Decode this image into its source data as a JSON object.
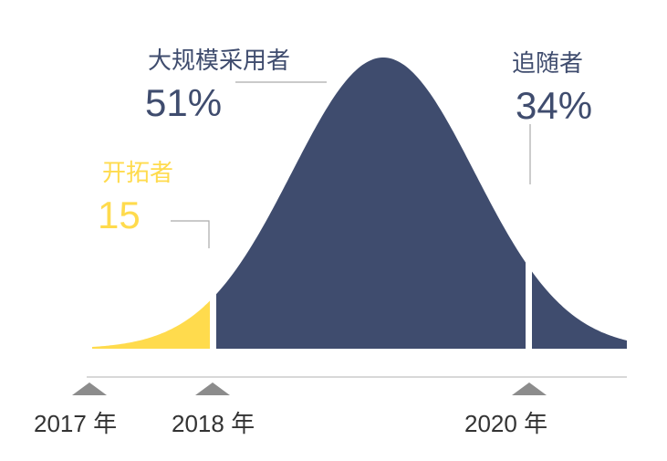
{
  "chart_data": {
    "type": "area",
    "title": "",
    "xlabel": "",
    "ylabel": "",
    "grid": false,
    "legend": "none",
    "segments": [
      {
        "name": "开拓者",
        "value": "15",
        "color": "#FFDB4D"
      },
      {
        "name": "大规模采用者",
        "value": "51%",
        "color": "#3F4C6E"
      },
      {
        "name": "追随者",
        "value": "34%",
        "color": "#3F4C6E"
      }
    ],
    "x_ticks": [
      "2017 年",
      "2018 年",
      "2020 年"
    ],
    "axis_color": "#CCCCCC",
    "marker_color": "#8C8C8C"
  }
}
